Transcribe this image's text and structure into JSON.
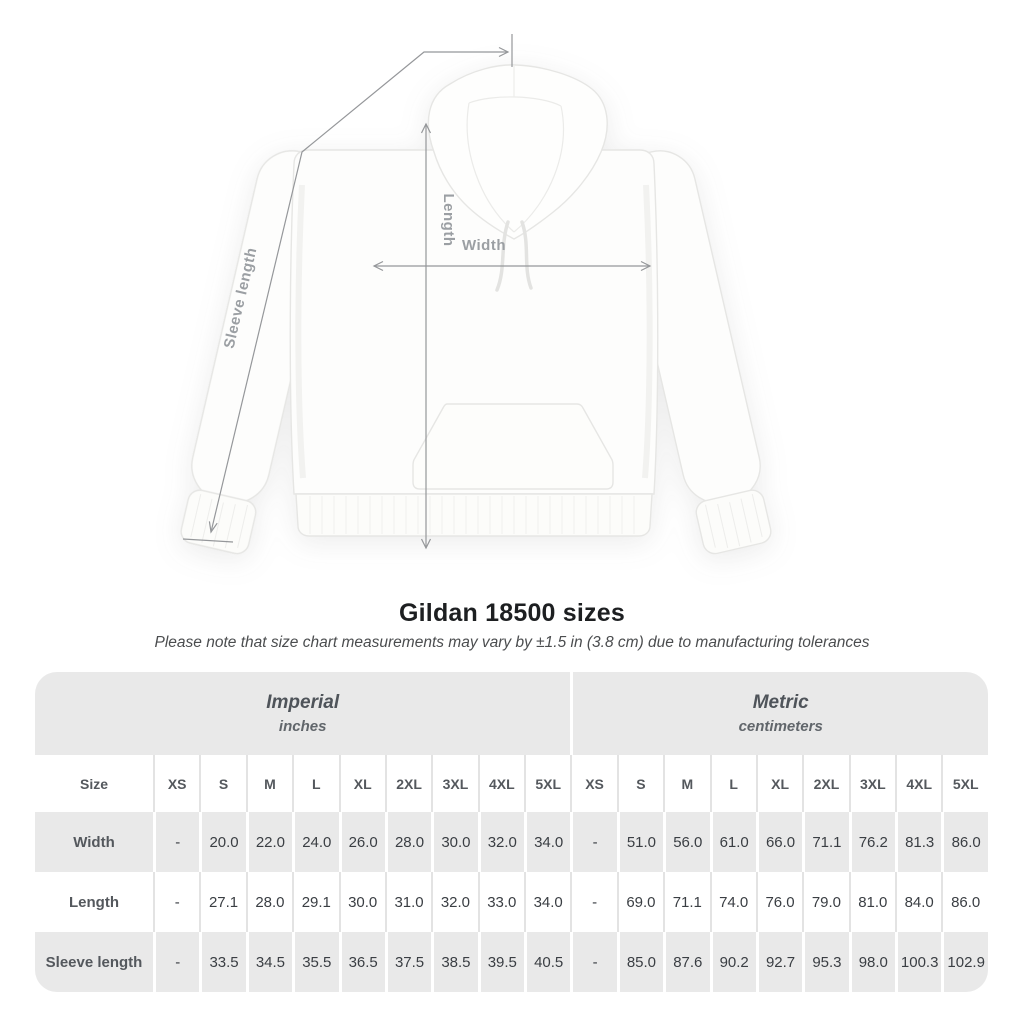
{
  "diagram": {
    "sleeve_label": "Sleeve length",
    "length_label": "Length",
    "width_label": "Width",
    "line_color": "#95979a",
    "label_color": "#9b9fa3",
    "garment": "white pullover hoodie, front view"
  },
  "heading": {
    "title": "Gildan 18500 sizes",
    "note": "Please note that size chart measurements may vary by ±1.5 in (3.8 cm) due to manufacturing tolerances"
  },
  "table": {
    "size_header": "Size",
    "unit_headers": [
      {
        "label": "Imperial",
        "sublabel": "inches"
      },
      {
        "label": "Metric",
        "sublabel": "centimeters"
      }
    ],
    "sizes": [
      "XS",
      "S",
      "M",
      "L",
      "XL",
      "2XL",
      "3XL",
      "4XL",
      "5XL"
    ],
    "rows": [
      {
        "label": "Width",
        "imperial": [
          "-",
          "20.0",
          "22.0",
          "24.0",
          "26.0",
          "28.0",
          "30.0",
          "32.0",
          "34.0"
        ],
        "metric": [
          "-",
          "51.0",
          "56.0",
          "61.0",
          "66.0",
          "71.1",
          "76.2",
          "81.3",
          "86.0"
        ]
      },
      {
        "label": "Length",
        "imperial": [
          "-",
          "27.1",
          "28.0",
          "29.1",
          "30.0",
          "31.0",
          "32.0",
          "33.0",
          "34.0"
        ],
        "metric": [
          "-",
          "69.0",
          "71.1",
          "74.0",
          "76.0",
          "79.0",
          "81.0",
          "84.0",
          "86.0"
        ]
      },
      {
        "label": "Sleeve length",
        "imperial": [
          "-",
          "33.5",
          "34.5",
          "35.5",
          "36.5",
          "37.5",
          "38.5",
          "39.5",
          "40.5"
        ],
        "metric": [
          "-",
          "85.0",
          "87.6",
          "90.2",
          "92.7",
          "95.3",
          "98.0",
          "100.3",
          "102.9"
        ]
      }
    ],
    "colors": {
      "band_bg": "#e9e9e9",
      "alt_row_bg": "#e9e9e9",
      "separator_on_white": "#e3e3e3",
      "separator_on_gray": "#ffffff",
      "header_text": "#54585d",
      "value_text": "#3a3e43"
    }
  }
}
